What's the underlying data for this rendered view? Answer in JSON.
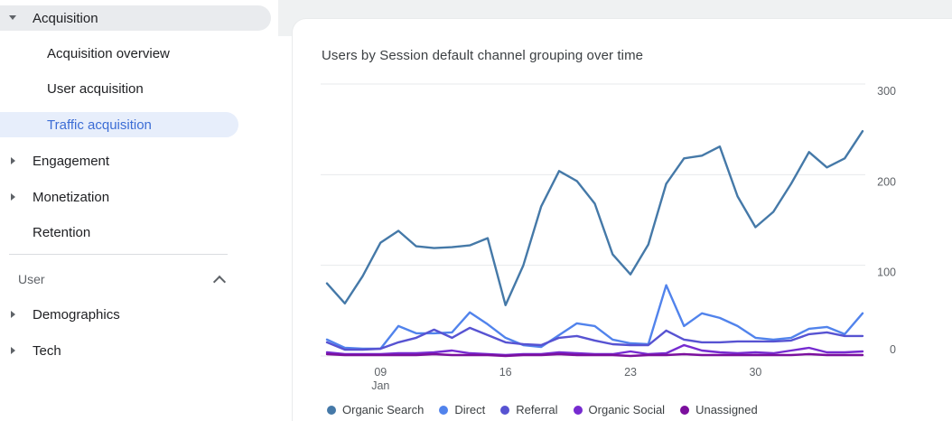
{
  "sidebar": {
    "items": [
      {
        "label": "Acquisition",
        "kind": "parent",
        "caret": "down",
        "highlighted": true
      },
      {
        "label": "Acquisition overview",
        "kind": "child"
      },
      {
        "label": "User acquisition",
        "kind": "child"
      },
      {
        "label": "Traffic acquisition",
        "kind": "child",
        "selected": true
      },
      {
        "label": "Engagement",
        "kind": "parent",
        "caret": "right"
      },
      {
        "label": "Monetization",
        "kind": "parent",
        "caret": "right"
      },
      {
        "label": "Retention",
        "kind": "parent"
      },
      {
        "label": "User",
        "kind": "section",
        "chevron": "up"
      },
      {
        "label": "Demographics",
        "kind": "parent",
        "caret": "right"
      },
      {
        "label": "Tech",
        "kind": "parent",
        "caret": "right"
      }
    ],
    "selected_text_color": "#3c6dd5",
    "selected_bg_color": "#e7eefb",
    "highlight_bg_color": "#e9ebee"
  },
  "main": {
    "title": "Users by Session default channel grouping over time"
  },
  "chart_data": {
    "type": "line",
    "title": "Users by Session default channel grouping over time",
    "xlabel": "",
    "ylabel": "",
    "ylim": [
      0,
      300
    ],
    "y_ticks": [
      0,
      100,
      200,
      300
    ],
    "grid": "horizontal",
    "legend_position": "bottom",
    "axis_color": "#5f6368",
    "grid_color": "#e7e9eb",
    "x": [
      "Jan 6",
      "Jan 7",
      "Jan 8",
      "Jan 9",
      "Jan 10",
      "Jan 11",
      "Jan 12",
      "Jan 13",
      "Jan 14",
      "Jan 15",
      "Jan 16",
      "Jan 17",
      "Jan 18",
      "Jan 19",
      "Jan 20",
      "Jan 21",
      "Jan 22",
      "Jan 23",
      "Jan 24",
      "Jan 25",
      "Jan 26",
      "Jan 27",
      "Jan 28",
      "Jan 29",
      "Jan 30",
      "Jan 31",
      "Feb 1",
      "Feb 2",
      "Feb 3",
      "Feb 4",
      "Feb 5"
    ],
    "x_ticks": [
      {
        "index": 3,
        "label": "09",
        "sublabel": "Jan"
      },
      {
        "index": 10,
        "label": "16"
      },
      {
        "index": 17,
        "label": "23"
      },
      {
        "index": 24,
        "label": "30"
      }
    ],
    "series": [
      {
        "name": "Organic Search",
        "color": "#4579a8",
        "values": [
          80,
          58,
          88,
          125,
          138,
          121,
          119,
          120,
          122,
          130,
          56,
          100,
          165,
          204,
          193,
          168,
          112,
          90,
          123,
          190,
          218,
          221,
          231,
          176,
          142,
          159,
          190,
          225,
          208,
          218,
          248
        ]
      },
      {
        "name": "Direct",
        "color": "#5183ec",
        "values": [
          18,
          9,
          8,
          8,
          33,
          25,
          25,
          26,
          48,
          35,
          20,
          12,
          10,
          23,
          36,
          33,
          18,
          14,
          13,
          78,
          33,
          47,
          42,
          33,
          20,
          18,
          20,
          30,
          32,
          24,
          47
        ]
      },
      {
        "name": "Referral",
        "color": "#5753d2",
        "values": [
          15,
          7,
          7,
          8,
          15,
          20,
          29,
          20,
          31,
          23,
          15,
          13,
          12,
          20,
          22,
          17,
          13,
          12,
          12,
          28,
          18,
          15,
          15,
          16,
          16,
          16,
          17,
          24,
          26,
          22,
          22
        ]
      },
      {
        "name": "Organic Social",
        "color": "#762bd0",
        "values": [
          4,
          2,
          2,
          2,
          3,
          3,
          4,
          6,
          3,
          2,
          1,
          2,
          2,
          4,
          3,
          2,
          2,
          5,
          2,
          3,
          12,
          6,
          4,
          3,
          4,
          3,
          6,
          9,
          4,
          4,
          5
        ]
      },
      {
        "name": "Unassigned",
        "color": "#7b0f9d",
        "values": [
          2,
          1,
          1,
          1,
          1,
          1,
          2,
          1,
          1,
          1,
          0,
          1,
          1,
          2,
          1,
          1,
          1,
          0,
          1,
          1,
          2,
          1,
          1,
          1,
          1,
          1,
          1,
          2,
          1,
          1,
          1
        ]
      }
    ]
  }
}
